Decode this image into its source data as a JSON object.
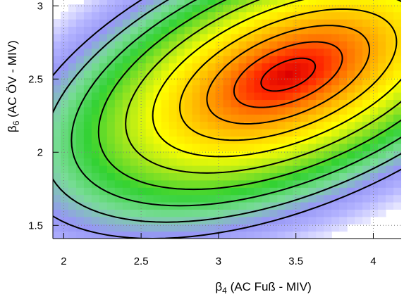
{
  "chart_data": {
    "type": "heatmap",
    "title": "",
    "xlabel": {
      "main": "β",
      "sub": "4",
      "rest": " (AC Fuß - MIV)"
    },
    "ylabel": {
      "main": "β",
      "sub": "6",
      "rest": " (AC ÖV - MIV)"
    },
    "xlim": [
      1.93,
      4.18
    ],
    "ylim": [
      1.41,
      3.04
    ],
    "x_ticks": [
      2,
      2.5,
      3,
      3.5,
      4
    ],
    "x_tick_labels": [
      "2",
      "2.5",
      "3",
      "3.5",
      "4"
    ],
    "y_ticks": [
      1.5,
      2,
      2.5,
      3
    ],
    "y_tick_labels": [
      "1.5",
      "2",
      "2.5",
      "3"
    ],
    "grid": true,
    "legend": "none",
    "density": {
      "center": [
        3.45,
        2.53
      ],
      "sigma_x": 0.5,
      "sigma_y": 0.32,
      "rho": 0.5,
      "cell_size": [
        0.05,
        0.05
      ]
    },
    "contour_levels_mahalanobis": [
      0.35,
      0.7,
      1.05,
      1.4,
      1.75,
      2.1,
      2.45,
      2.8,
      3.15,
      3.5
    ],
    "colors": {
      "background": "#ffffff",
      "grid": "#7f7f7f",
      "contour": "#000000",
      "colormap_low_to_high": [
        "#e6e6ff",
        "#b4b4ff",
        "#9696f5",
        "#78dc96",
        "#32d232",
        "#a0e61e",
        "#ffff00",
        "#ffc800",
        "#ff8200",
        "#ff2800",
        "#dc0000"
      ]
    }
  }
}
